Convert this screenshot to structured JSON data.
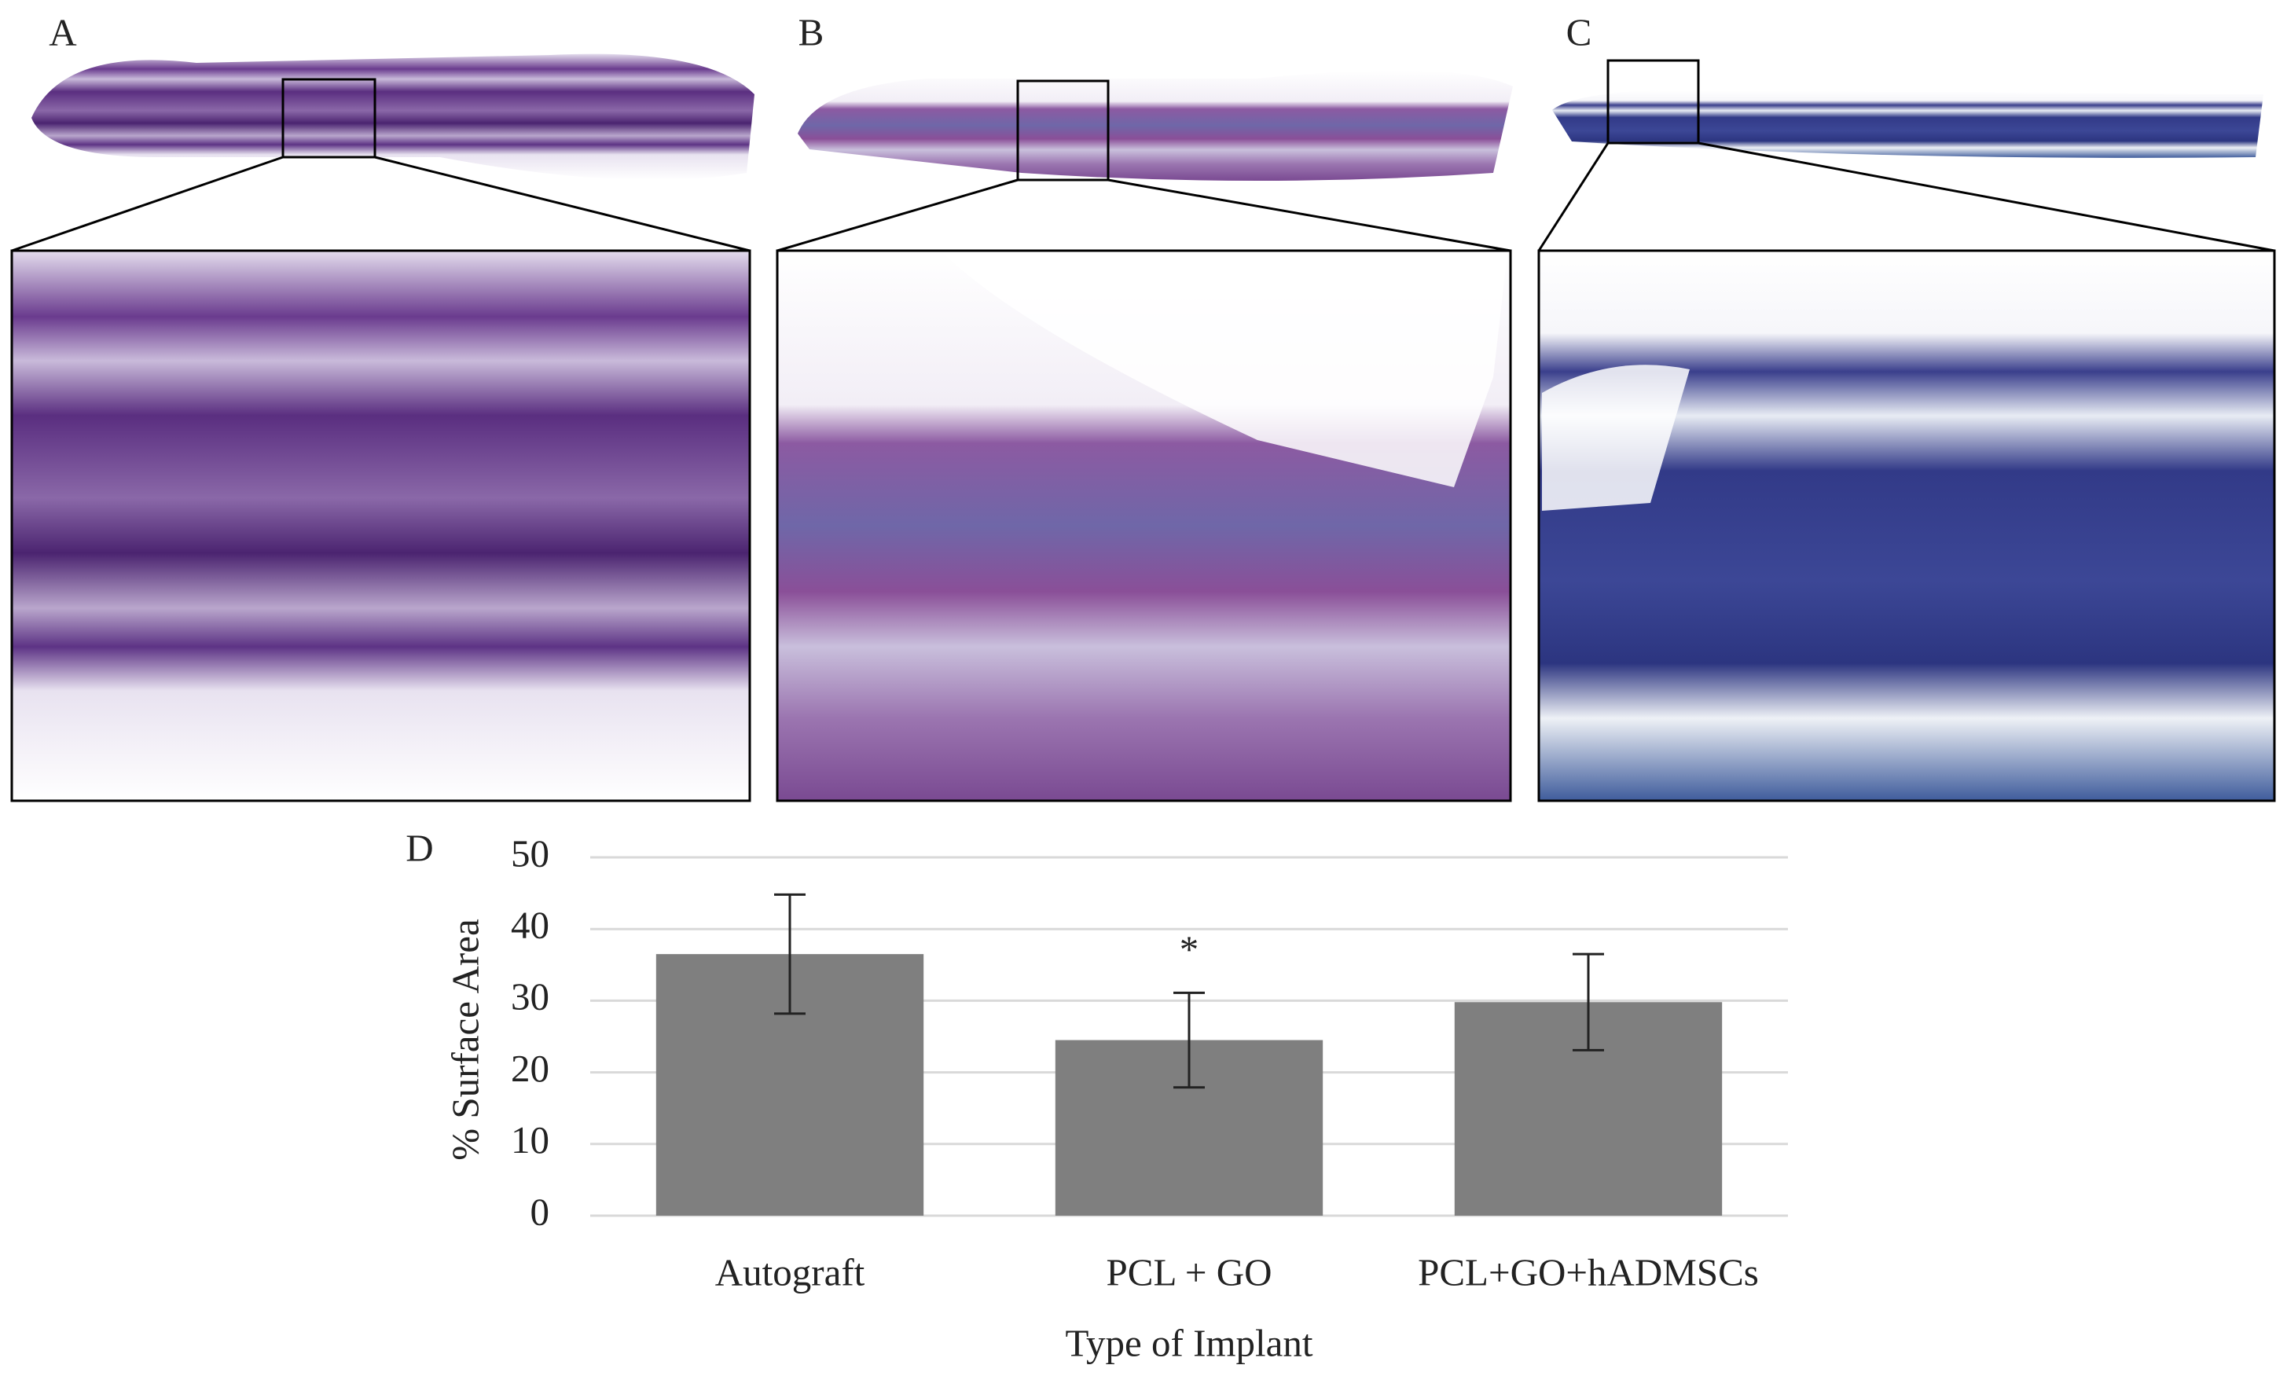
{
  "panel_labels": [
    "A",
    "B",
    "C"
  ],
  "chart_data": {
    "type": "bar",
    "panel_label": "D",
    "y_label": "% Surface Area",
    "x_label": "Type of Implant",
    "categories": [
      "Autograft",
      "PCL + GO",
      "PCL+GO+hADMSCs"
    ],
    "values": [
      36.5,
      24.5,
      29.8
    ],
    "errors": [
      8.3,
      6.6,
      6.7
    ],
    "significance": [
      null,
      "*",
      null
    ],
    "color": "#7f7f7f",
    "ylim": [
      0,
      50
    ],
    "yticks": [
      0,
      10,
      20,
      30,
      40,
      50
    ],
    "grid": true
  }
}
